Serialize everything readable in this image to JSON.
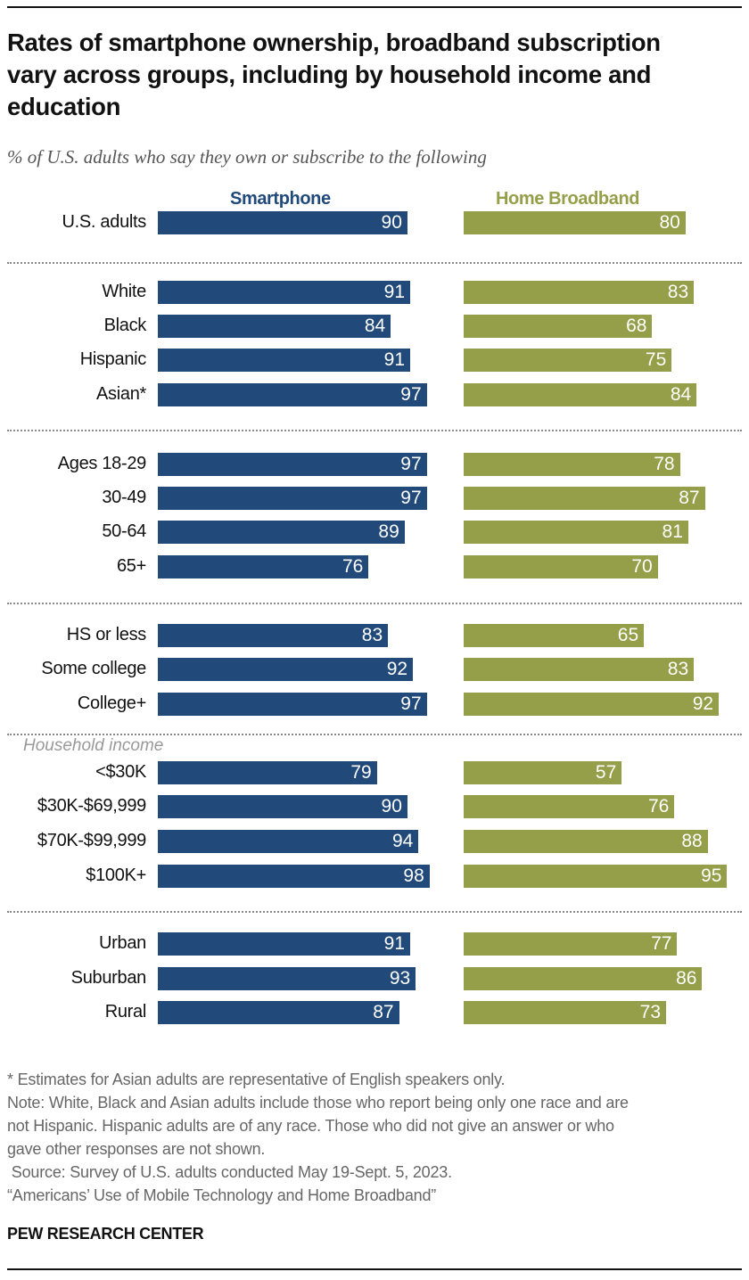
{
  "title": "Rates of smartphone ownership, broadband subscription vary across groups, including by household income and education",
  "subtitle": "% of U.S. adults who say they own or subscribe to the following",
  "colors": {
    "smartphone": "#214a7b",
    "broadband": "#959e48"
  },
  "chart_data": {
    "type": "bar",
    "orientation": "horizontal",
    "series": [
      {
        "name": "Smartphone",
        "values": [
          90,
          91,
          84,
          91,
          97,
          97,
          97,
          89,
          76,
          83,
          92,
          97,
          79,
          90,
          94,
          98,
          91,
          93,
          87
        ]
      },
      {
        "name": "Home Broadband",
        "values": [
          80,
          83,
          68,
          75,
          84,
          78,
          87,
          81,
          70,
          65,
          83,
          92,
          57,
          76,
          88,
          95,
          77,
          86,
          73
        ]
      }
    ],
    "categories": [
      "U.S. adults",
      "White",
      "Black",
      "Hispanic",
      "Asian*",
      "Ages 18-29",
      "30-49",
      "50-64",
      "65+",
      "HS or less",
      "Some college",
      "College+",
      "<$30K",
      "$30K-$69,999",
      "$70K-$99,999",
      "$100K+",
      "Urban",
      "Suburban",
      "Rural"
    ],
    "group_label": "Household income",
    "xlim": [
      0,
      100
    ]
  },
  "notes": [
    "* Estimates for Asian adults are representative of English speakers only.",
    "Note: White, Black and Asian adults include those who report being only one race and are",
    "not Hispanic. Hispanic adults are of any race. Those who did not give an answer or who",
    "gave other responses are not shown.",
    " Source: Survey of U.S. adults conducted May 19-Sept. 5, 2023.",
    "“Americans’ Use of Mobile Technology and Home Broadband”"
  ],
  "logo": "PEW RESEARCH CENTER"
}
